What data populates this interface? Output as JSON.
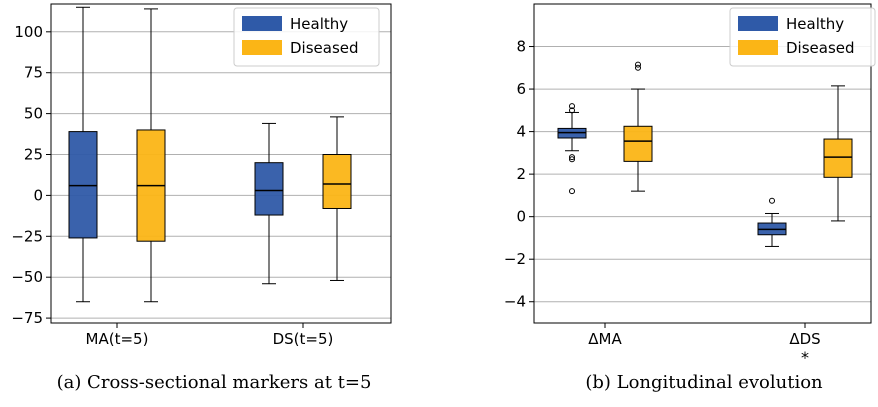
{
  "chart_data": [
    {
      "type": "box",
      "caption": "(a) Cross-sectional markers at t=5",
      "categories": [
        "MA(t=5)",
        "DS(t=5)"
      ],
      "ylim": [
        -78,
        117
      ],
      "yticks": [
        100,
        75,
        50,
        25,
        0,
        -25,
        -50,
        -75
      ],
      "ytick_labels": [
        "100",
        "75",
        "50",
        "25",
        "0",
        "−25",
        "−50",
        "−75"
      ],
      "grid": "horizontal",
      "legend_position": "top-right",
      "series": [
        {
          "name": "Healthy",
          "color": "#2f5aa8",
          "boxes": [
            {
              "whisker_low": -65,
              "q1": -26,
              "median": 6,
              "q3": 39,
              "whisker_high": 115,
              "outliers": []
            },
            {
              "whisker_low": -54,
              "q1": -12,
              "median": 3,
              "q3": 20,
              "whisker_high": 44,
              "outliers": []
            }
          ]
        },
        {
          "name": "Diseased",
          "color": "#fbb516",
          "boxes": [
            {
              "whisker_low": -65,
              "q1": -28,
              "median": 6,
              "q3": 40,
              "whisker_high": 114,
              "outliers": []
            },
            {
              "whisker_low": -52,
              "q1": -8,
              "median": 7,
              "q3": 25,
              "whisker_high": 48,
              "outliers": []
            }
          ]
        }
      ]
    },
    {
      "type": "box",
      "caption": "(b) Longitudinal evolution",
      "categories": [
        "ΔMA",
        "ΔDS"
      ],
      "category_annotations": [
        "",
        "*"
      ],
      "ylim": [
        -5,
        10
      ],
      "yticks": [
        8,
        6,
        4,
        2,
        0,
        -2,
        -4
      ],
      "ytick_labels": [
        "8",
        "6",
        "4",
        "2",
        "0",
        "−2",
        "−4"
      ],
      "grid": "horizontal",
      "legend_position": "top-right",
      "series": [
        {
          "name": "Healthy",
          "color": "#2f5aa8",
          "boxes": [
            {
              "whisker_low": 3.1,
              "q1": 3.7,
              "median": 3.95,
              "q3": 4.15,
              "whisker_high": 4.9,
              "outliers": [
                5.0,
                5.2,
                2.7,
                2.8,
                1.2
              ]
            },
            {
              "whisker_low": -1.4,
              "q1": -0.85,
              "median": -0.6,
              "q3": -0.3,
              "whisker_high": 0.15,
              "outliers": [
                0.75
              ]
            }
          ]
        },
        {
          "name": "Diseased",
          "color": "#fbb516",
          "boxes": [
            {
              "whisker_low": 1.2,
              "q1": 2.6,
              "median": 3.55,
              "q3": 4.25,
              "whisker_high": 6.0,
              "outliers": [
                7.0,
                7.15
              ]
            },
            {
              "whisker_low": -0.2,
              "q1": 1.85,
              "median": 2.8,
              "q3": 3.65,
              "whisker_high": 6.15,
              "outliers": []
            }
          ]
        }
      ]
    }
  ]
}
